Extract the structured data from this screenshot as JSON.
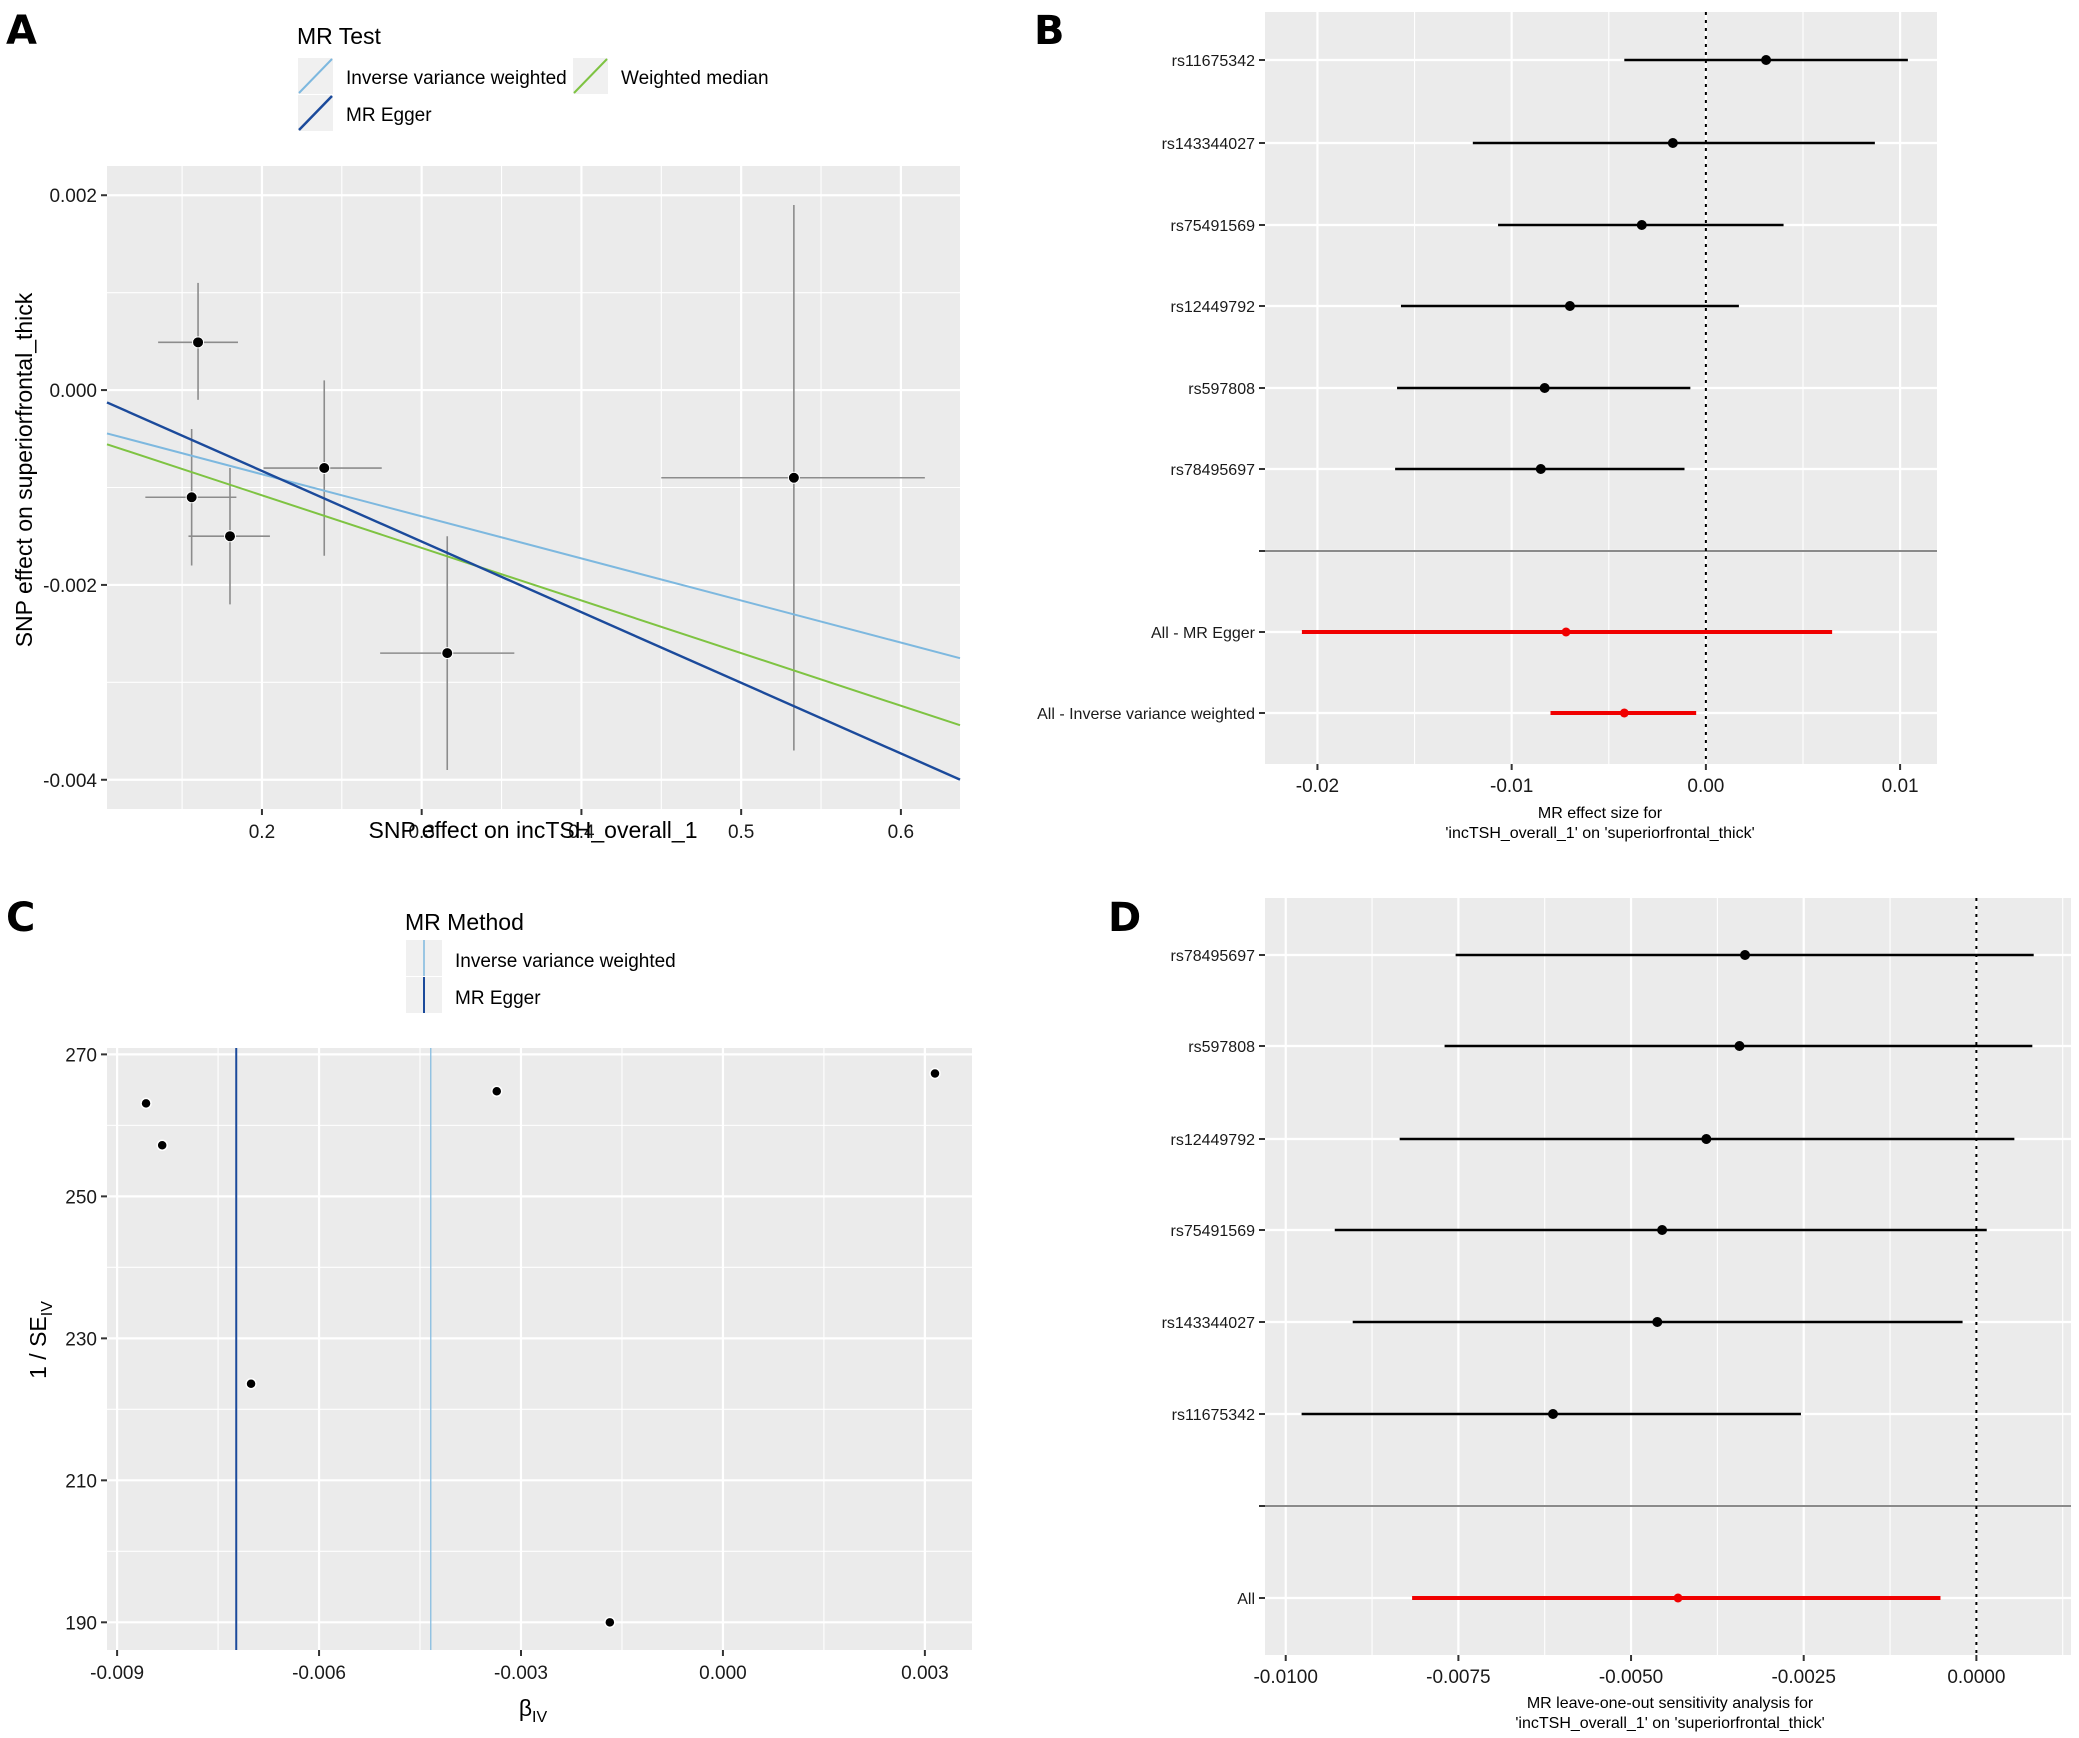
{
  "figure": {
    "panel_letters": [
      "A",
      "B",
      "C",
      "D"
    ]
  },
  "colors": {
    "ivw": "#7db8df",
    "egger": "#1b4a9b",
    "weighted_median": "#7ec342",
    "point": "#000000",
    "errorbar_scatter": "#8c8c8c",
    "summary": "#f00000",
    "panel_bg": "#ebebeb",
    "separator": "#8a8a8a"
  },
  "chart_data": [
    {
      "id": "A",
      "type": "scatter",
      "title": "",
      "xlabel": "SNP effect on incTSH_overall_1",
      "ylabel": "SNP effect on superiorfrontal_thick",
      "xlim": [
        0.103,
        0.637
      ],
      "ylim": [
        -0.0043,
        0.0023
      ],
      "xticks": [
        0.2,
        0.3,
        0.4,
        0.5,
        0.6
      ],
      "xtick_labels": [
        "0.2",
        "0.3",
        "0.4",
        "0.5",
        "0.6"
      ],
      "yticks": [
        0.002,
        0.0,
        -0.002,
        -0.004
      ],
      "ytick_labels": [
        "0.002",
        "0.000",
        "-0.002",
        "-0.004"
      ],
      "grid": true,
      "legend": {
        "title": "MR Test",
        "placement": "top",
        "entries": [
          {
            "label": "Inverse variance weighted",
            "key": "ivw"
          },
          {
            "label": "Weighted median",
            "key": "weighted_median"
          },
          {
            "label": "MR Egger",
            "key": "egger"
          }
        ]
      },
      "points": [
        {
          "x": 0.16,
          "y": 0.00049,
          "x_lo": 0.135,
          "x_hi": 0.185,
          "y_lo": -0.0001,
          "y_hi": 0.0011
        },
        {
          "x": 0.239,
          "y": -0.0008,
          "x_lo": 0.201,
          "x_hi": 0.275,
          "y_lo": -0.0017,
          "y_hi": 0.0001
        },
        {
          "x": 0.156,
          "y": -0.0011,
          "x_lo": 0.127,
          "x_hi": 0.184,
          "y_lo": -0.0018,
          "y_hi": -0.0004
        },
        {
          "x": 0.18,
          "y": -0.0015,
          "x_lo": 0.154,
          "x_hi": 0.205,
          "y_lo": -0.0022,
          "y_hi": -0.0008
        },
        {
          "x": 0.316,
          "y": -0.0027,
          "x_lo": 0.274,
          "x_hi": 0.358,
          "y_lo": -0.0039,
          "y_hi": -0.0015
        },
        {
          "x": 0.533,
          "y": -0.0009,
          "x_lo": 0.45,
          "x_hi": 0.615,
          "y_lo": -0.0037,
          "y_hi": 0.0019
        }
      ],
      "lines": [
        {
          "name": "Inverse variance weighted",
          "key": "ivw",
          "intercept": 0.0,
          "slope": -0.00432
        },
        {
          "name": "Weighted median",
          "key": "weighted_median",
          "intercept": 0.0,
          "slope": -0.0054
        },
        {
          "name": "MR Egger",
          "key": "egger",
          "intercept": 0.00062,
          "slope": -0.00725
        }
      ]
    },
    {
      "id": "B",
      "type": "forest",
      "xlabel": "MR effect size for\n'incTSH_overall_1' on 'superiorfrontal_thick'",
      "xlabel_lines": [
        "MR effect size for",
        "'incTSH_overall_1' on 'superiorfrontal_thick'"
      ],
      "xlim": [
        -0.0227,
        0.0119
      ],
      "xticks": [
        -0.02,
        -0.01,
        0.0,
        0.01
      ],
      "xtick_labels": [
        "-0.02",
        "-0.01",
        "0.00",
        "0.01"
      ],
      "reference_line": 0.0,
      "grid": true,
      "rows": [
        {
          "label": "rs11675342",
          "b": 0.0031,
          "lo": -0.0042,
          "hi": 0.0104,
          "summary": false
        },
        {
          "label": "rs143344027",
          "b": -0.0017,
          "lo": -0.012,
          "hi": 0.0087,
          "summary": false
        },
        {
          "label": "rs75491569",
          "b": -0.0033,
          "lo": -0.0107,
          "hi": 0.004,
          "summary": false
        },
        {
          "label": "rs12449792",
          "b": -0.007,
          "lo": -0.0157,
          "hi": 0.0017,
          "summary": false
        },
        {
          "label": "rs597808",
          "b": -0.0083,
          "lo": -0.0159,
          "hi": -0.0008,
          "summary": false
        },
        {
          "label": "rs78495697",
          "b": -0.0085,
          "lo": -0.016,
          "hi": -0.0011,
          "summary": false
        },
        {
          "label": "All - MR Egger",
          "b": -0.0072,
          "lo": -0.0208,
          "hi": 0.0065,
          "summary": true
        },
        {
          "label": "All - Inverse variance weighted",
          "b": -0.0042,
          "lo": -0.008,
          "hi": -0.0005,
          "summary": true
        }
      ]
    },
    {
      "id": "C",
      "type": "scatter",
      "title": "",
      "xlabel": "βIV",
      "xlabel_main": "β",
      "xlabel_sub": "IV",
      "ylabel_main": "1 / SE",
      "ylabel_sub": "IV",
      "xlim": [
        -0.00915,
        0.0037
      ],
      "ylim": [
        186.1,
        270.9
      ],
      "xticks": [
        -0.009,
        -0.006,
        -0.003,
        0.0,
        0.003
      ],
      "xtick_labels": [
        "-0.009",
        "-0.006",
        "-0.003",
        "0.000",
        "0.003"
      ],
      "yticks": [
        270,
        250,
        230,
        210,
        190
      ],
      "ytick_labels": [
        "270",
        "250",
        "230",
        "210",
        "190"
      ],
      "grid": true,
      "legend": {
        "title": "MR Method",
        "placement": "top",
        "entries": [
          {
            "label": "Inverse variance weighted",
            "key": "ivw"
          },
          {
            "label": "MR Egger",
            "key": "egger"
          }
        ]
      },
      "points": [
        {
          "x": -0.00857,
          "y": 263.1
        },
        {
          "x": -0.00833,
          "y": 257.2
        },
        {
          "x": -0.00701,
          "y": 223.6
        },
        {
          "x": -0.00336,
          "y": 264.8
        },
        {
          "x": -0.00168,
          "y": 190.0
        },
        {
          "x": 0.00315,
          "y": 267.3
        }
      ],
      "vlines": [
        {
          "name": "MR Egger",
          "key": "egger",
          "x": -0.00723
        },
        {
          "name": "Inverse variance weighted",
          "key": "ivw",
          "x": -0.00434
        }
      ]
    },
    {
      "id": "D",
      "type": "forest",
      "xlabel_lines": [
        "MR leave-one-out sensitivity analysis for",
        "'incTSH_overall_1' on 'superiorfrontal_thick'"
      ],
      "xlim": [
        -0.0103,
        0.00137
      ],
      "xticks": [
        -0.01,
        -0.0075,
        -0.005,
        -0.0025,
        0.0
      ],
      "xtick_labels": [
        "-0.0100",
        "-0.0075",
        "-0.0050",
        "-0.0025",
        "0.0000"
      ],
      "reference_line": 0.0,
      "grid": true,
      "rows": [
        {
          "label": "rs78495697",
          "b": -0.00335,
          "lo": -0.00754,
          "hi": 0.00083,
          "summary": false
        },
        {
          "label": "rs597808",
          "b": -0.00343,
          "lo": -0.0077,
          "hi": 0.00081,
          "summary": false
        },
        {
          "label": "rs12449792",
          "b": -0.00391,
          "lo": -0.00835,
          "hi": 0.00055,
          "summary": false
        },
        {
          "label": "rs75491569",
          "b": -0.00455,
          "lo": -0.00929,
          "hi": 0.00015,
          "summary": false
        },
        {
          "label": "rs143344027",
          "b": -0.00462,
          "lo": -0.00903,
          "hi": -0.0002,
          "summary": false
        },
        {
          "label": "rs11675342",
          "b": -0.00613,
          "lo": -0.00977,
          "hi": -0.00254,
          "summary": false
        },
        {
          "label": "All",
          "b": -0.00432,
          "lo": -0.00817,
          "hi": -0.00052,
          "summary": true
        }
      ]
    }
  ]
}
